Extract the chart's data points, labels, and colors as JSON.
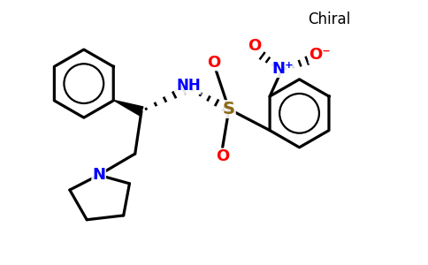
{
  "title": "Chiral",
  "bg_color": "#ffffff",
  "bond_color": "#000000",
  "bond_width": 2.3,
  "atom_colors": {
    "N": "#0000ff",
    "S": "#8b6914",
    "O": "#ff0000",
    "H": "#0000ff"
  },
  "figsize": [
    4.84,
    3.0
  ],
  "dpi": 100,
  "xlim": [
    0,
    10
  ],
  "ylim": [
    0,
    6.2
  ]
}
